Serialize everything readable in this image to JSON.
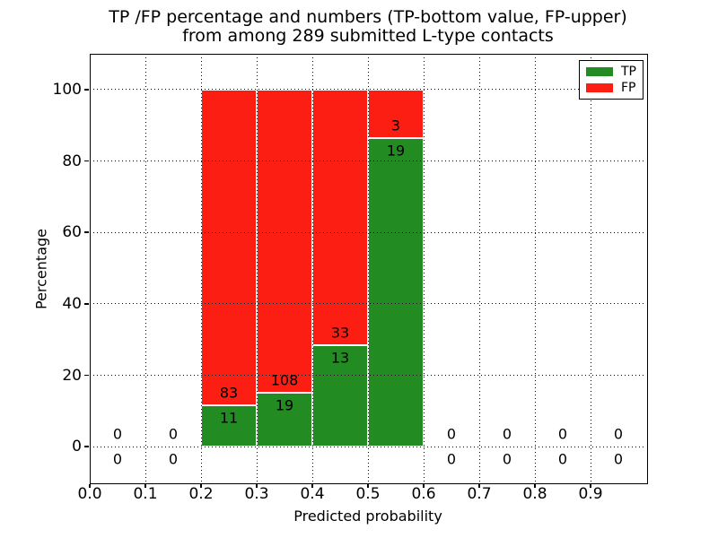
{
  "figure": {
    "title_line1": "TP /FP percentage and numbers (TP-bottom value, FP-upper)",
    "title_line2": "from among 289 submitted L-type contacts",
    "xlabel": "Predicted probability",
    "ylabel": "Percentage"
  },
  "legend": {
    "position": "upper right",
    "items": [
      {
        "label": "TP",
        "color": "#228b22"
      },
      {
        "label": "FP",
        "color": "#fc1d13"
      }
    ]
  },
  "chart_data": {
    "type": "bar",
    "stacked": true,
    "title": "TP /FP percentage and numbers (TP-bottom value, FP-upper) from among 289 submitted L-type contacts",
    "total_submitted": 289,
    "xlabel": "Predicted probability",
    "ylabel": "Percentage",
    "xlim": [
      0.0,
      1.0
    ],
    "ylim": [
      -10,
      110
    ],
    "xticks": [
      0.0,
      0.1,
      0.2,
      0.3,
      0.4,
      0.5,
      0.6,
      0.7,
      0.8,
      0.9
    ],
    "yticks": [
      0,
      20,
      40,
      60,
      80,
      100
    ],
    "grid": {
      "visible": true,
      "style": "dotted",
      "color": "#000000",
      "above_bars": true
    },
    "colors": {
      "tp": "#228b22",
      "fp": "#fc1d13",
      "bar_edge": "#ffffff"
    },
    "series_names": [
      "TP",
      "FP"
    ],
    "bins": [
      {
        "range": [
          0.0,
          0.1
        ],
        "tp_count": 0,
        "fp_count": 0,
        "tp_pct": 0,
        "fp_pct": 0
      },
      {
        "range": [
          0.1,
          0.2
        ],
        "tp_count": 0,
        "fp_count": 0,
        "tp_pct": 0,
        "fp_pct": 0
      },
      {
        "range": [
          0.2,
          0.3
        ],
        "tp_count": 11,
        "fp_count": 83,
        "tp_pct": 11.7,
        "fp_pct": 88.3
      },
      {
        "range": [
          0.3,
          0.4
        ],
        "tp_count": 19,
        "fp_count": 108,
        "tp_pct": 15.0,
        "fp_pct": 85.0
      },
      {
        "range": [
          0.4,
          0.5
        ],
        "tp_count": 13,
        "fp_count": 33,
        "tp_pct": 28.3,
        "fp_pct": 71.7
      },
      {
        "range": [
          0.5,
          0.6
        ],
        "tp_count": 19,
        "fp_count": 3,
        "tp_pct": 86.4,
        "fp_pct": 13.6
      },
      {
        "range": [
          0.6,
          0.7
        ],
        "tp_count": 0,
        "fp_count": 0,
        "tp_pct": 0,
        "fp_pct": 0
      },
      {
        "range": [
          0.7,
          0.8
        ],
        "tp_count": 0,
        "fp_count": 0,
        "tp_pct": 0,
        "fp_pct": 0
      },
      {
        "range": [
          0.8,
          0.9
        ],
        "tp_count": 0,
        "fp_count": 0,
        "tp_pct": 0,
        "fp_pct": 0
      },
      {
        "range": [
          0.9,
          1.0
        ],
        "tp_count": 0,
        "fp_count": 0,
        "tp_pct": 0,
        "fp_pct": 0
      }
    ]
  }
}
